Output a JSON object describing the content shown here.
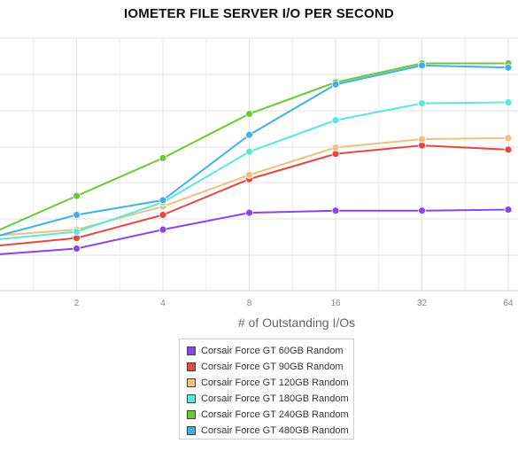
{
  "chart_data": {
    "type": "line",
    "title": "IOMETER FILE SERVER I/O PER SECOND",
    "xlabel": "# of Outstanding I/Os",
    "ylabel": "",
    "x": [
      1,
      2,
      4,
      8,
      16,
      32,
      64
    ],
    "x_tick_labels": [
      "2",
      "4",
      "8",
      "16",
      "32",
      "64"
    ],
    "x_scale": "log2",
    "y_tick_labels_visible": false,
    "grid": true,
    "legend_position": "bottom",
    "series": [
      {
        "name": "Corsair Force GT 60GB Random",
        "color": "#8b45e6",
        "values": [
          0.17,
          0.2,
          0.29,
          0.37,
          0.38,
          0.38,
          0.385
        ]
      },
      {
        "name": "Corsair Force GT 90GB Random",
        "color": "#e8473f",
        "values": [
          0.21,
          0.25,
          0.36,
          0.53,
          0.65,
          0.69,
          0.67
        ]
      },
      {
        "name": "Corsair Force GT 120GB Random",
        "color": "#f0c080",
        "values": [
          0.26,
          0.29,
          0.4,
          0.55,
          0.68,
          0.72,
          0.725
        ]
      },
      {
        "name": "Corsair Force GT 180GB Random",
        "color": "#5ae8d8",
        "values": [
          0.24,
          0.28,
          0.42,
          0.66,
          0.81,
          0.89,
          0.895
        ]
      },
      {
        "name": "Corsair Force GT 240GB Random",
        "color": "#6cc834",
        "values": [
          0.27,
          0.45,
          0.63,
          0.84,
          0.99,
          1.08,
          1.08
        ]
      },
      {
        "name": "Corsair Force GT 480GB Random",
        "color": "#3fb0e8",
        "values": [
          0.25,
          0.36,
          0.43,
          0.74,
          0.98,
          1.07,
          1.06
        ]
      }
    ],
    "ylim": [
      0,
      1.2
    ]
  }
}
